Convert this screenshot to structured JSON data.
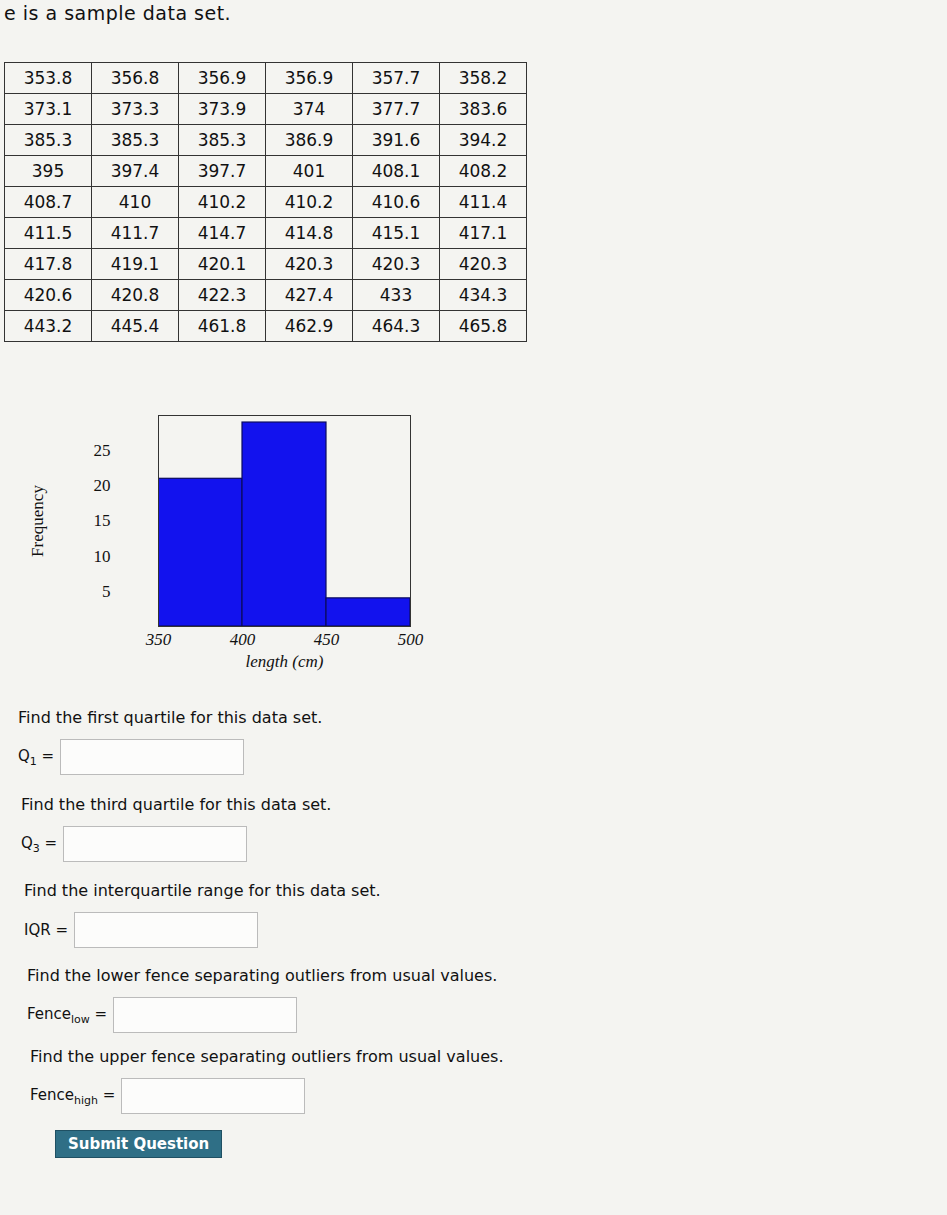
{
  "intro": "e is a sample data set.",
  "table": {
    "rows": [
      [
        353.8,
        356.8,
        356.9,
        356.9,
        357.7,
        358.2
      ],
      [
        373.1,
        373.3,
        373.9,
        374,
        377.7,
        383.6
      ],
      [
        385.3,
        385.3,
        385.3,
        386.9,
        391.6,
        394.2
      ],
      [
        395,
        397.4,
        397.7,
        401,
        408.1,
        408.2
      ],
      [
        408.7,
        410,
        410.2,
        410.2,
        410.6,
        411.4
      ],
      [
        411.5,
        411.7,
        414.7,
        414.8,
        415.1,
        417.1
      ],
      [
        417.8,
        419.1,
        420.1,
        420.3,
        420.3,
        420.3
      ],
      [
        420.6,
        420.8,
        422.3,
        427.4,
        433,
        434.3
      ],
      [
        443.2,
        445.4,
        461.8,
        462.9,
        464.3,
        465.8
      ]
    ]
  },
  "chart_data": {
    "type": "histogram",
    "bins": [
      350,
      400,
      450,
      500
    ],
    "values": [
      21,
      29,
      4
    ],
    "color": "#1212ee",
    "xlabel": "length (cm)",
    "ylabel": "Frequency",
    "xlim": [
      350,
      500
    ],
    "ylim": [
      0,
      30
    ],
    "xticks": [
      350,
      400,
      450,
      500
    ],
    "yticks": [
      5,
      10,
      15,
      20,
      25
    ]
  },
  "questions": [
    {
      "prompt": "Find the first quartile for this data set.",
      "label": "Q",
      "subscript": "1",
      "suffix": " ="
    },
    {
      "prompt": "Find the third quartile for this data set.",
      "label": "Q",
      "subscript": "3",
      "suffix": " ="
    },
    {
      "prompt": "Find the interquartile range for this data set.",
      "label": "IQR",
      "subscript": "",
      "suffix": " ="
    },
    {
      "prompt": "Find the lower fence separating outliers from usual values.",
      "label": "Fence",
      "subscript": "low",
      "suffix": " ="
    },
    {
      "prompt": "Find the upper fence separating outliers from usual values.",
      "label": "Fence",
      "subscript": "high",
      "suffix": " ="
    }
  ],
  "button": "Submit Question"
}
